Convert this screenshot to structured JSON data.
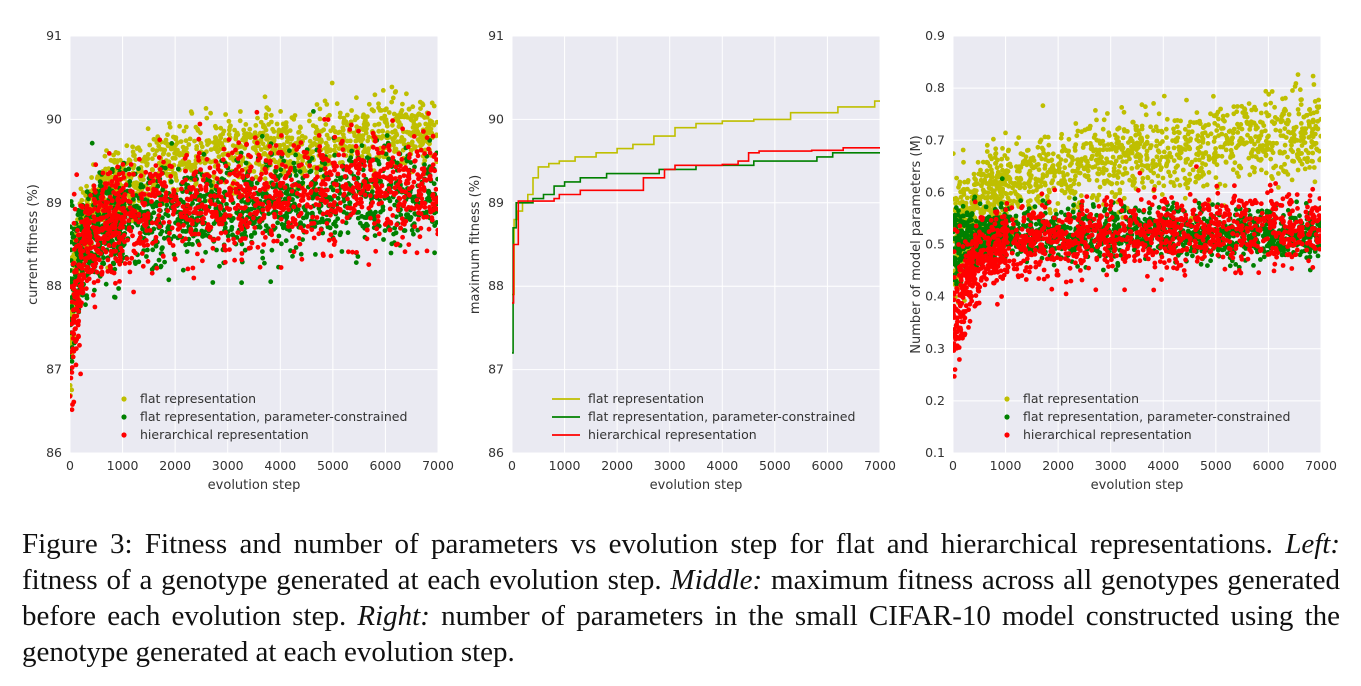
{
  "colors": {
    "flat": "#bfbf00",
    "constrained": "#008000",
    "hierarchical": "#ff0000",
    "axes_bg": "#eaeaf2",
    "grid": "#ffffff"
  },
  "legend_entries": [
    "flat representation",
    "flat representation, parameter-constrained",
    "hierarchical representation"
  ],
  "chart_data": [
    {
      "type": "scatter",
      "xlabel": "evolution step",
      "ylabel": "current fitness (%)",
      "xlim": [
        0,
        7000
      ],
      "ylim": [
        86,
        91
      ],
      "xticks": [
        0,
        1000,
        2000,
        3000,
        4000,
        5000,
        6000,
        7000
      ],
      "yticks": [
        86,
        87,
        88,
        89,
        90,
        91
      ],
      "grid": true,
      "legend": "lower-left",
      "series": [
        {
          "name": "flat representation",
          "trend": [
            [
              0,
              87.2
            ],
            [
              100,
              88.2
            ],
            [
              300,
              88.8
            ],
            [
              700,
              89.1
            ],
            [
              1000,
              89.2
            ],
            [
              1500,
              89.4
            ],
            [
              2500,
              89.55
            ],
            [
              4000,
              89.65
            ],
            [
              5500,
              89.75
            ],
            [
              7000,
              89.85
            ]
          ],
          "spread": 0.22
        },
        {
          "name": "flat representation, parameter-constrained",
          "trend": [
            [
              0,
              87.8
            ],
            [
              100,
              88.3
            ],
            [
              300,
              88.6
            ],
            [
              700,
              88.75
            ],
            [
              1000,
              88.8
            ],
            [
              2000,
              88.9
            ],
            [
              4000,
              89.0
            ],
            [
              5500,
              89.05
            ],
            [
              7000,
              89.1
            ]
          ],
          "spread": 0.3
        },
        {
          "name": "hierarchical representation",
          "trend": [
            [
              0,
              87.2
            ],
            [
              100,
              87.9
            ],
            [
              300,
              88.5
            ],
            [
              700,
              88.75
            ],
            [
              1000,
              88.85
            ],
            [
              2000,
              88.95
            ],
            [
              4000,
              89.05
            ],
            [
              5500,
              89.15
            ],
            [
              7000,
              89.2
            ]
          ],
          "spread": 0.32
        }
      ]
    },
    {
      "type": "line",
      "xlabel": "evolution step",
      "ylabel": "maximum fitness (%)",
      "xlim": [
        0,
        7000
      ],
      "ylim": [
        86,
        91
      ],
      "xticks": [
        0,
        1000,
        2000,
        3000,
        4000,
        5000,
        6000,
        7000
      ],
      "yticks": [
        86,
        87,
        88,
        89,
        90,
        91
      ],
      "grid": true,
      "legend": "lower-left",
      "step": true,
      "series": [
        {
          "name": "flat representation",
          "x": [
            0,
            40,
            100,
            200,
            300,
            400,
            500,
            700,
            900,
            1200,
            1600,
            2000,
            2300,
            2700,
            3100,
            3500,
            4000,
            4600,
            5300,
            6200,
            6900,
            7000
          ],
          "y": [
            87.9,
            88.8,
            88.9,
            89.0,
            89.1,
            89.3,
            89.43,
            89.47,
            89.5,
            89.55,
            89.6,
            89.65,
            89.7,
            89.8,
            89.9,
            89.95,
            89.98,
            90.0,
            90.08,
            90.15,
            90.22,
            90.22
          ]
        },
        {
          "name": "flat representation, parameter-constrained",
          "x": [
            0,
            20,
            80,
            400,
            600,
            800,
            1000,
            1300,
            1800,
            2800,
            3500,
            4600,
            5800,
            6100,
            7000
          ],
          "y": [
            87.2,
            88.7,
            89.0,
            89.05,
            89.1,
            89.2,
            89.25,
            89.3,
            89.35,
            89.4,
            89.45,
            89.5,
            89.55,
            89.6,
            89.6
          ]
        },
        {
          "name": "hierarchical representation",
          "x": [
            0,
            30,
            120,
            800,
            900,
            1300,
            2500,
            2900,
            3100,
            4000,
            4300,
            4500,
            4700,
            5700,
            6300,
            7000
          ],
          "y": [
            87.8,
            88.5,
            89.02,
            89.05,
            89.1,
            89.15,
            89.3,
            89.4,
            89.45,
            89.46,
            89.5,
            89.6,
            89.62,
            89.63,
            89.66,
            89.66
          ]
        }
      ]
    },
    {
      "type": "scatter",
      "xlabel": "evolution step",
      "ylabel": "Number of model parameters (M)",
      "xlim": [
        0,
        7000
      ],
      "ylim": [
        0.1,
        0.9
      ],
      "xticks": [
        0,
        1000,
        2000,
        3000,
        4000,
        5000,
        6000,
        7000
      ],
      "yticks": [
        0.1,
        0.2,
        0.3,
        0.4,
        0.5,
        0.6,
        0.7,
        0.8,
        0.9
      ],
      "grid": true,
      "legend": "lower-left",
      "series": [
        {
          "name": "flat representation",
          "trend": [
            [
              0,
              0.5
            ],
            [
              300,
              0.55
            ],
            [
              700,
              0.6
            ],
            [
              1500,
              0.63
            ],
            [
              3000,
              0.66
            ],
            [
              5000,
              0.69
            ],
            [
              7000,
              0.72
            ]
          ],
          "spread": 0.04
        },
        {
          "name": "flat representation, parameter-constrained",
          "trend": [
            [
              0,
              0.5
            ],
            [
              300,
              0.51
            ],
            [
              1000,
              0.52
            ],
            [
              3000,
              0.52
            ],
            [
              7000,
              0.52
            ]
          ],
          "spread": 0.025
        },
        {
          "name": "hierarchical representation",
          "trend": [
            [
              0,
              0.35
            ],
            [
              200,
              0.42
            ],
            [
              500,
              0.47
            ],
            [
              1000,
              0.5
            ],
            [
              3000,
              0.52
            ],
            [
              7000,
              0.53
            ]
          ],
          "spread": 0.035
        }
      ]
    }
  ],
  "caption": {
    "lead": "Figure 3: Fitness and number of parameters vs evolution step for flat and hierarchical representations. ",
    "left_label": "Left:",
    "left_text": " fitness of a genotype generated at each evolution step. ",
    "middle_label": "Middle:",
    "middle_text": " maximum fitness across all genotypes generated before each evolution step. ",
    "right_label": "Right:",
    "right_text": " number of parameters in the small CIFAR-10 model constructed using the genotype generated at each evolution step."
  }
}
